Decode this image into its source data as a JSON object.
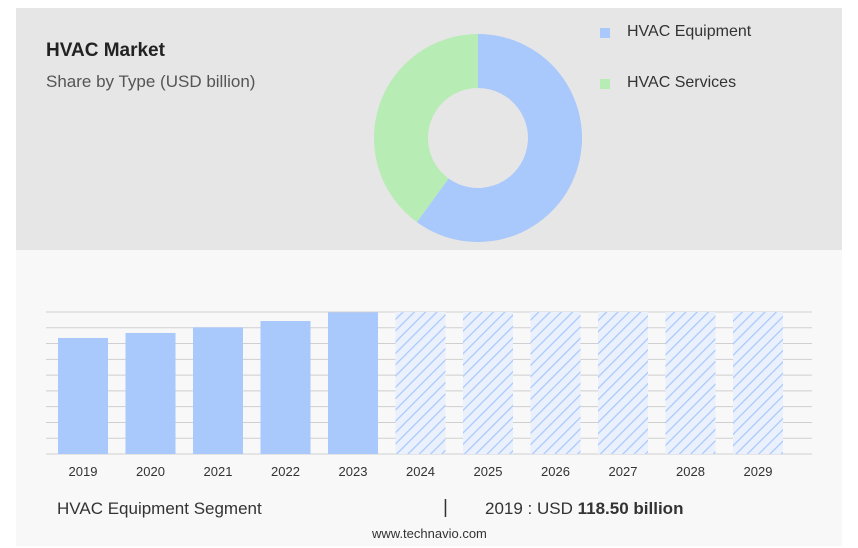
{
  "chart_data": [
    {
      "type": "pie",
      "title": "HVAC Market",
      "subtitle": "Share by Type (USD billion)",
      "slices": [
        {
          "name": "HVAC Equipment",
          "value": 60,
          "color": "#a9c8fb"
        },
        {
          "name": "HVAC Services",
          "value": 40,
          "color": "#b7ecb4"
        }
      ],
      "legend": "top-right"
    },
    {
      "type": "bar",
      "categories": [
        "2019",
        "2020",
        "2021",
        "2022",
        "2023",
        "2024",
        "2025",
        "2026",
        "2027",
        "2028",
        "2029"
      ],
      "values": [
        118.5,
        123.6,
        129.3,
        135.8,
        144.6,
        null,
        null,
        null,
        null,
        null,
        null
      ],
      "forecast_categories": [
        "2024",
        "2025",
        "2026",
        "2027",
        "2028",
        "2029"
      ],
      "ylim": [
        0,
        145
      ],
      "grid": true,
      "bar_color": "#a9c8fb",
      "forecast_style": "hatched"
    }
  ],
  "footer": {
    "segment": "HVAC Equipment Segment",
    "separator": "|",
    "value_prefix": "2019 : USD",
    "value_bold": "118.50 billion"
  },
  "source": "www.technavio.com"
}
